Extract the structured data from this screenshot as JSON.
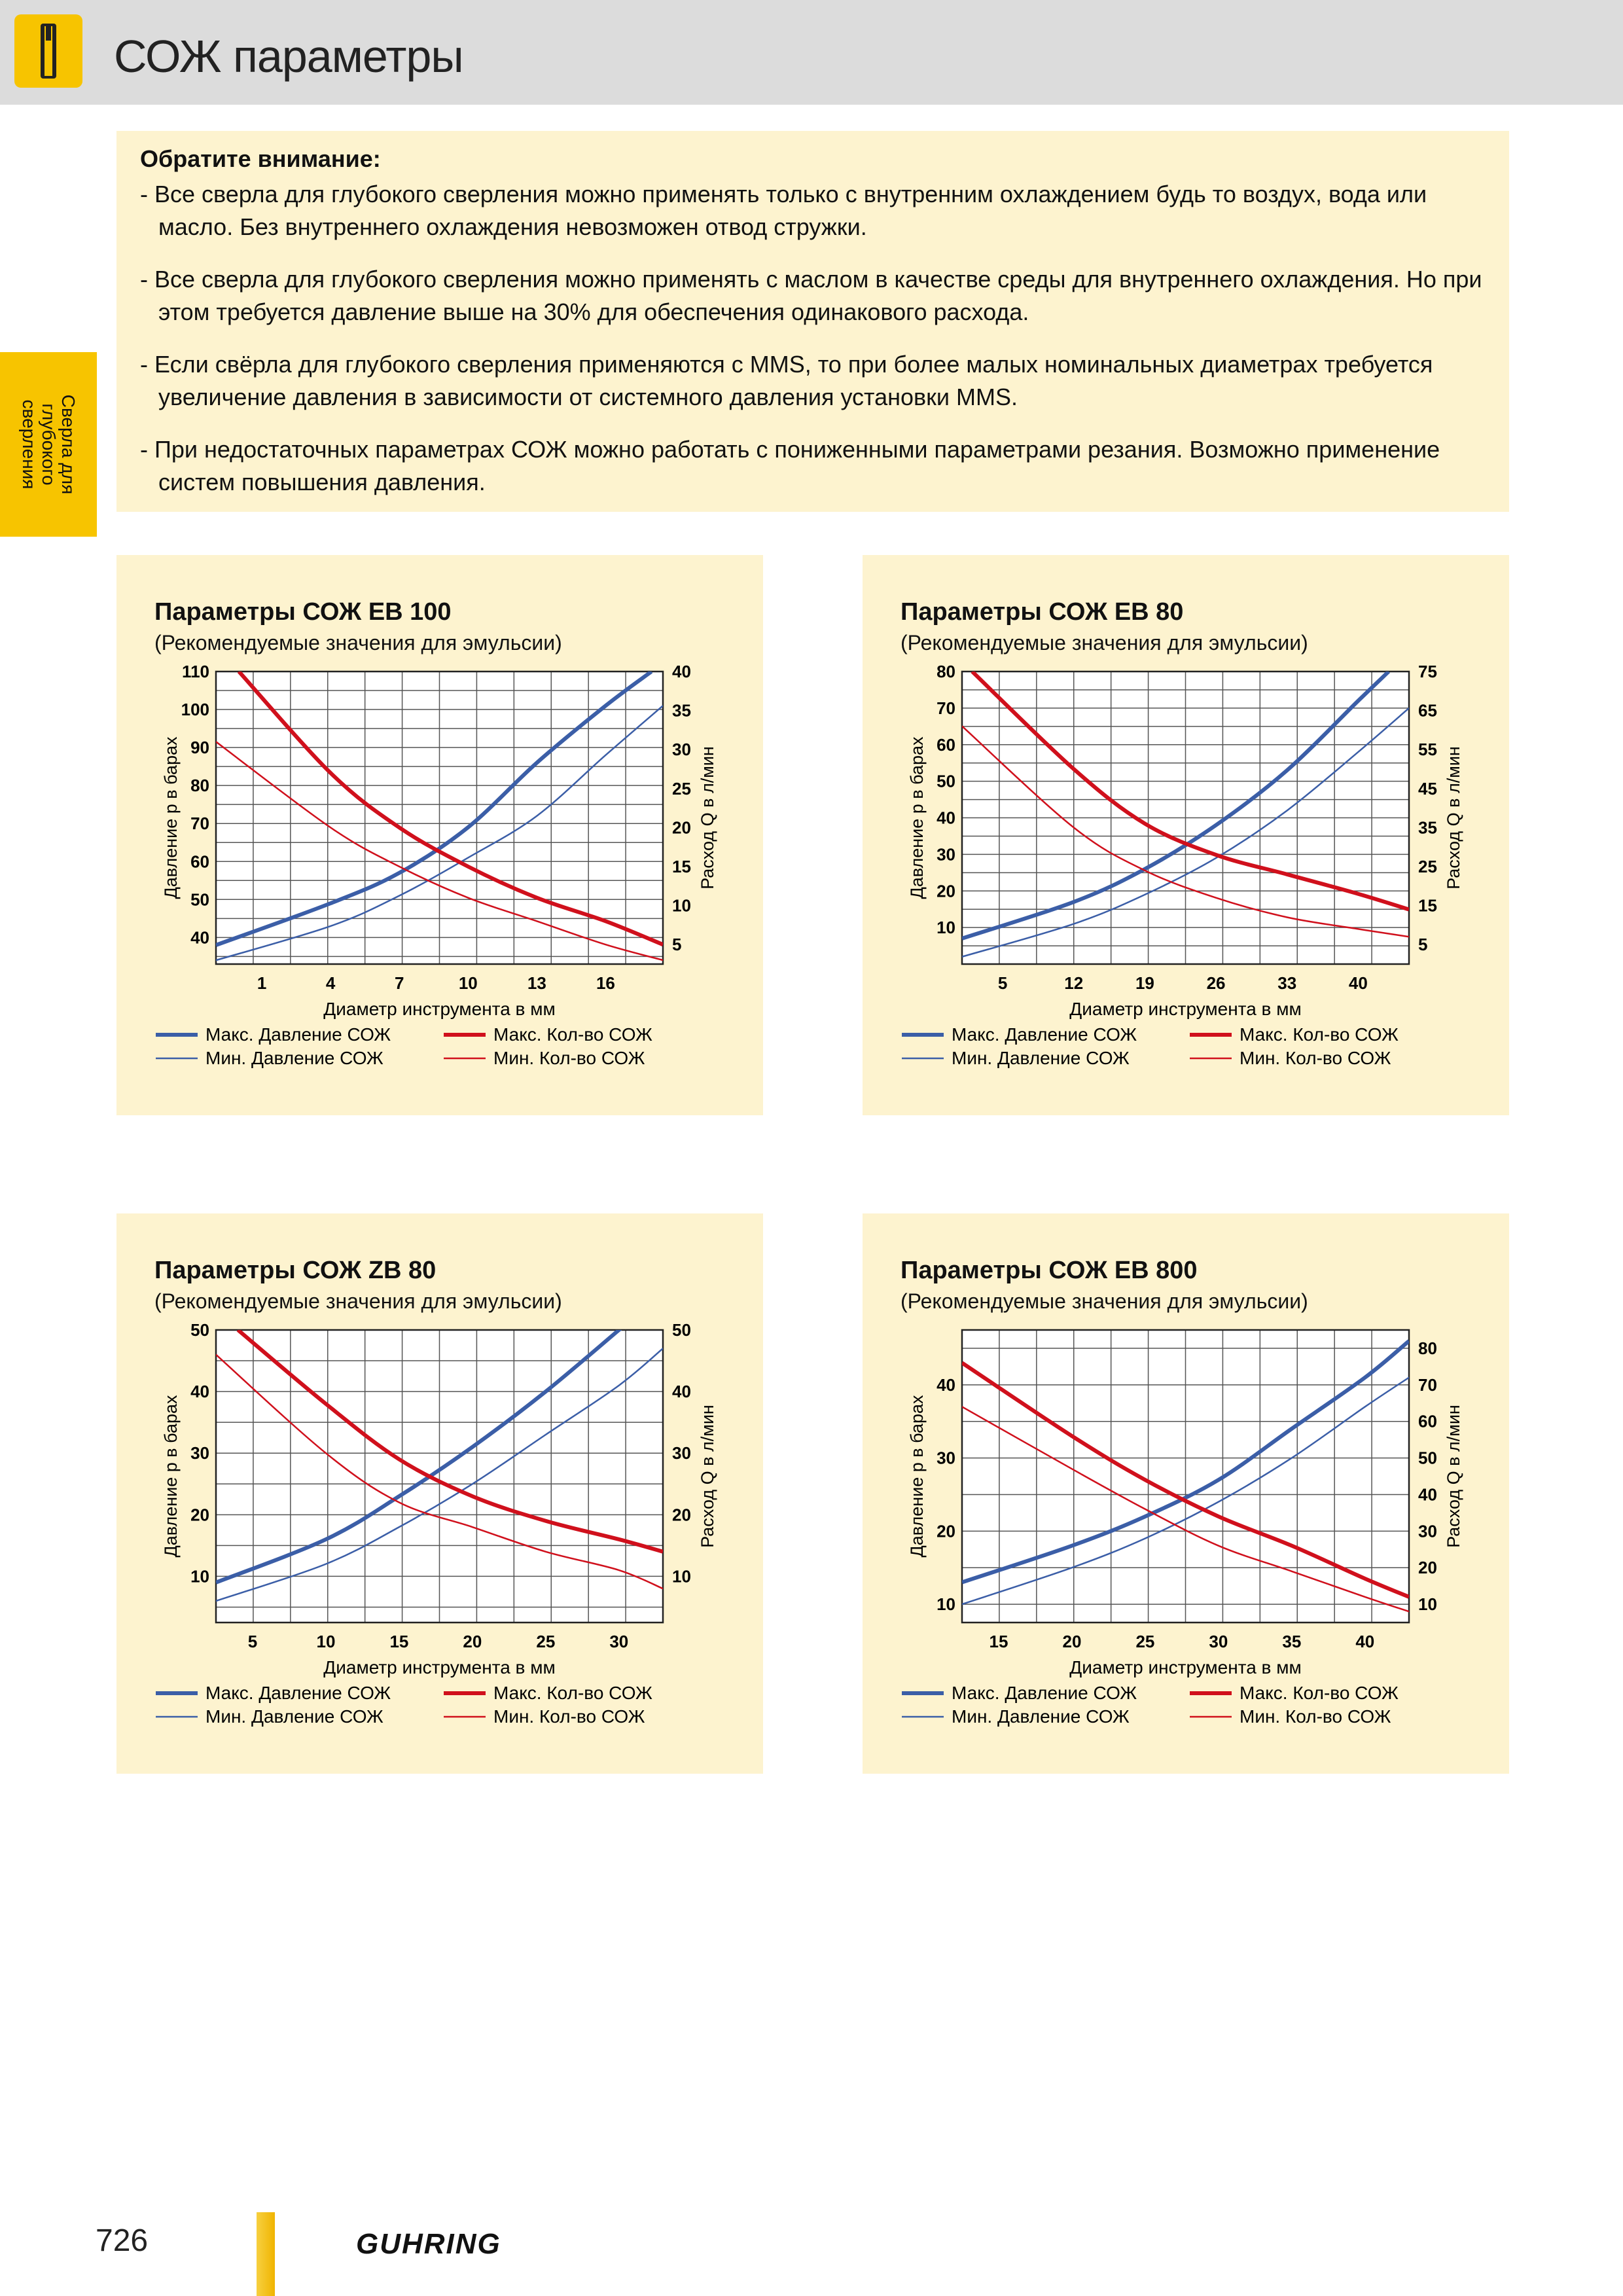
{
  "header": {
    "title": "СОЖ параметры",
    "icon": "drill-icon"
  },
  "side_tab": {
    "label": "Сверла для глубокого сверления"
  },
  "notice": {
    "heading": "Обратите внимание:",
    "items": [
      "- Все сверла для глубокого сверления можно применять только с внутренним охлаждением будь то воздух, вода или масло. Без внутреннего охлаждения невозможен отвод стружки.",
      "- Все сверла для глубокого сверления можно применять с маслом в качестве среды для внутреннего охлаждения. Но при этом требуется давление выше на 30% для обеспечения одинакового расхода.",
      "- Если свёрла для глубокого сверления применяются с MMS, то при более малых номинальных диаметрах требуется увеличение давления в зависимости от системного давления установки MMS.",
      "- При недостаточных параметрах СОЖ можно работать с пониженными параметрами резания. Возможно применение систем повышения давления."
    ]
  },
  "footer": {
    "page_number": "726",
    "logo": "GUHRING"
  },
  "colors": {
    "pressure": "#3b5ea7",
    "flow": "#d0101c",
    "accent": "#f7c400",
    "panel_bg": "#fdf3cf"
  },
  "chart_data": [
    {
      "type": "line",
      "title": "Параметры СОЖ EB 100",
      "subtitle": "(Рекомендуемые значения для эмульсии)",
      "xlabel": "Диаметр инструмента в мм",
      "ylabel_left": "Давление р в барах",
      "ylabel_right": "Расход Q в л/мин",
      "xlim": [
        -1,
        18.5
      ],
      "ylim_left": [
        33,
        110
      ],
      "ylim_right": [
        2.5,
        40
      ],
      "x_ticks": [
        1,
        4,
        7,
        10,
        13,
        16
      ],
      "y_left_ticks": [
        40,
        50,
        60,
        70,
        80,
        90,
        100,
        110
      ],
      "y_right_ticks": [
        5,
        10,
        15,
        20,
        25,
        30,
        35,
        40
      ],
      "grid": true,
      "legend": {
        "max_pressure": "Макс. Давление СОЖ",
        "min_pressure": "Мин. Давление СОЖ",
        "max_flow": "Макс. Кол-во СОЖ",
        "min_flow": "Мин. Кол-во СОЖ"
      },
      "series": [
        {
          "name": "Макс. Давление СОЖ",
          "axis": "left",
          "kind": "max_pressure",
          "x": [
            -1,
            4,
            7,
            10,
            13,
            16,
            18
          ],
          "values": [
            38,
            49,
            57,
            69,
            86,
            101,
            110
          ]
        },
        {
          "name": "Мин. Давление СОЖ",
          "axis": "left",
          "kind": "min_pressure",
          "x": [
            -1,
            4,
            7,
            10,
            13,
            16,
            18.5
          ],
          "values": [
            34,
            43,
            51,
            61,
            72,
            88,
            101
          ]
        },
        {
          "name": "Макс. Кол-во СОЖ",
          "axis": "right",
          "kind": "max_flow",
          "x": [
            0,
            4,
            7,
            10,
            13,
            16,
            18.5
          ],
          "values": [
            40,
            27,
            20,
            15,
            11,
            8,
            5
          ]
        },
        {
          "name": "Мин. Кол-во СОЖ",
          "axis": "right",
          "kind": "min_flow",
          "x": [
            -1,
            4,
            7,
            10,
            13,
            16,
            18.5
          ],
          "values": [
            31,
            20,
            15,
            11,
            8,
            5,
            3
          ]
        }
      ]
    },
    {
      "type": "line",
      "title": "Параметры СОЖ EB 80",
      "subtitle": "(Рекомендуемые значения для эмульсии)",
      "xlabel": "Диаметр инструмента в мм",
      "ylabel_left": "Давление р в барах",
      "ylabel_right": "Расход Q в л/мин",
      "xlim": [
        1,
        45
      ],
      "ylim_left": [
        0,
        80
      ],
      "ylim_right": [
        0,
        75
      ],
      "x_ticks": [
        5,
        12,
        19,
        26,
        33,
        40
      ],
      "y_left_ticks": [
        10,
        20,
        30,
        40,
        50,
        60,
        70,
        80
      ],
      "y_right_ticks": [
        5,
        15,
        25,
        35,
        45,
        55,
        65,
        75
      ],
      "grid": true,
      "legend": {
        "max_pressure": "Макс. Давление СОЖ",
        "min_pressure": "Мин. Давление СОЖ",
        "max_flow": "Макс. Кол-во СОЖ",
        "min_flow": "Мин. Кол-во СОЖ"
      },
      "series": [
        {
          "name": "Макс. Давление СОЖ",
          "axis": "left",
          "kind": "max_pressure",
          "x": [
            1,
            12,
            19,
            26,
            33,
            40,
            43
          ],
          "values": [
            7,
            17,
            26,
            38,
            53,
            72,
            80
          ]
        },
        {
          "name": "Мин. Давление СОЖ",
          "axis": "left",
          "kind": "min_pressure",
          "x": [
            1,
            12,
            19,
            26,
            33,
            40,
            45
          ],
          "values": [
            2,
            11,
            19,
            29,
            42,
            58,
            70
          ]
        },
        {
          "name": "Макс. Кол-во СОЖ",
          "axis": "right",
          "kind": "max_flow",
          "x": [
            2,
            12,
            19,
            26,
            33,
            40,
            45
          ],
          "values": [
            75,
            50,
            36,
            28,
            23,
            18,
            14
          ]
        },
        {
          "name": "Мин. Кол-во СОЖ",
          "axis": "right",
          "kind": "min_flow",
          "x": [
            1,
            12,
            19,
            26,
            33,
            40,
            45
          ],
          "values": [
            61,
            35,
            24,
            17,
            12,
            9,
            7
          ]
        }
      ]
    },
    {
      "type": "line",
      "title": "Параметры СОЖ ZB 80",
      "subtitle": "(Рекомендуемые значения для эмульсии)",
      "xlabel": "Диаметр инструмента в мм",
      "ylabel_left": "Давление р в барах",
      "ylabel_right": "Расход Q в л/мин",
      "xlim": [
        2.5,
        33
      ],
      "ylim_left": [
        2.5,
        50
      ],
      "ylim_right": [
        2.5,
        50
      ],
      "x_ticks": [
        5,
        10,
        15,
        20,
        25,
        30
      ],
      "y_left_ticks": [
        10,
        20,
        30,
        40,
        50
      ],
      "y_right_ticks": [
        10,
        20,
        30,
        40,
        50
      ],
      "grid": true,
      "legend": {
        "max_pressure": "Макс. Давление СОЖ",
        "min_pressure": "Мин. Давление СОЖ",
        "max_flow": "Макс. Кол-во СОЖ",
        "min_flow": "Мин. Кол-во СОЖ"
      },
      "series": [
        {
          "name": "Макс. Давление СОЖ",
          "axis": "left",
          "kind": "max_pressure",
          "x": [
            2.5,
            10,
            15,
            20,
            25,
            30,
            31.5
          ],
          "values": [
            9,
            16,
            23,
            31,
            40,
            50,
            53
          ]
        },
        {
          "name": "Мин. Давление СОЖ",
          "axis": "left",
          "kind": "min_pressure",
          "x": [
            2.5,
            10,
            15,
            20,
            25,
            30,
            33
          ],
          "values": [
            6,
            12,
            18,
            25,
            33,
            41,
            47
          ]
        },
        {
          "name": "Макс. Кол-во СОЖ",
          "axis": "right",
          "kind": "max_flow",
          "x": [
            4,
            10,
            15,
            20,
            25,
            30,
            33
          ],
          "values": [
            50,
            38,
            29,
            23,
            19,
            16,
            14
          ]
        },
        {
          "name": "Мин. Кол-во СОЖ",
          "axis": "right",
          "kind": "min_flow",
          "x": [
            2.5,
            10,
            15,
            20,
            25,
            30,
            33
          ],
          "values": [
            46,
            30,
            22,
            18,
            14,
            11,
            8
          ]
        }
      ]
    },
    {
      "type": "line",
      "title": "Параметры СОЖ EB 800",
      "subtitle": "(Рекомендуемые значения для эмульсии)",
      "xlabel": "Диаметр инструмента в мм",
      "ylabel_left": "Давление р в барах",
      "ylabel_right": "Расход Q в л/мин",
      "xlim": [
        12.5,
        43
      ],
      "ylim_left": [
        7.5,
        47.5
      ],
      "ylim_right": [
        5,
        85
      ],
      "x_ticks": [
        15,
        20,
        25,
        30,
        35,
        40
      ],
      "y_left_ticks": [
        10,
        20,
        30,
        40
      ],
      "y_right_ticks": [
        10,
        20,
        30,
        40,
        50,
        60,
        70,
        80
      ],
      "grid": true,
      "legend": {
        "max_pressure": "Макс. Давление СОЖ",
        "min_pressure": "Мин. Давление СОЖ",
        "max_flow": "Макс. Кол-во СОЖ",
        "min_flow": "Мин. Кол-во СОЖ"
      },
      "series": [
        {
          "name": "Макс. Давление СОЖ",
          "axis": "left",
          "kind": "max_pressure",
          "x": [
            12.5,
            20,
            25,
            30,
            35,
            40,
            43
          ],
          "values": [
            13,
            18,
            22,
            27,
            34,
            41,
            46
          ]
        },
        {
          "name": "Мин. Давление СОЖ",
          "axis": "left",
          "kind": "min_pressure",
          "x": [
            12.5,
            20,
            25,
            30,
            35,
            40,
            43
          ],
          "values": [
            10,
            15,
            19,
            24,
            30,
            37,
            41
          ]
        },
        {
          "name": "Макс. Кол-во СОЖ",
          "axis": "right",
          "kind": "max_flow",
          "x": [
            12.5,
            20,
            25,
            30,
            35,
            40,
            43
          ],
          "values": [
            76,
            56,
            44,
            34,
            26,
            17,
            12
          ]
        },
        {
          "name": "Мин. Кол-во СОЖ",
          "axis": "right",
          "kind": "min_flow",
          "x": [
            12.5,
            20,
            25,
            30,
            35,
            40,
            43
          ],
          "values": [
            64,
            47,
            36,
            26,
            19,
            12,
            8
          ]
        }
      ]
    }
  ]
}
